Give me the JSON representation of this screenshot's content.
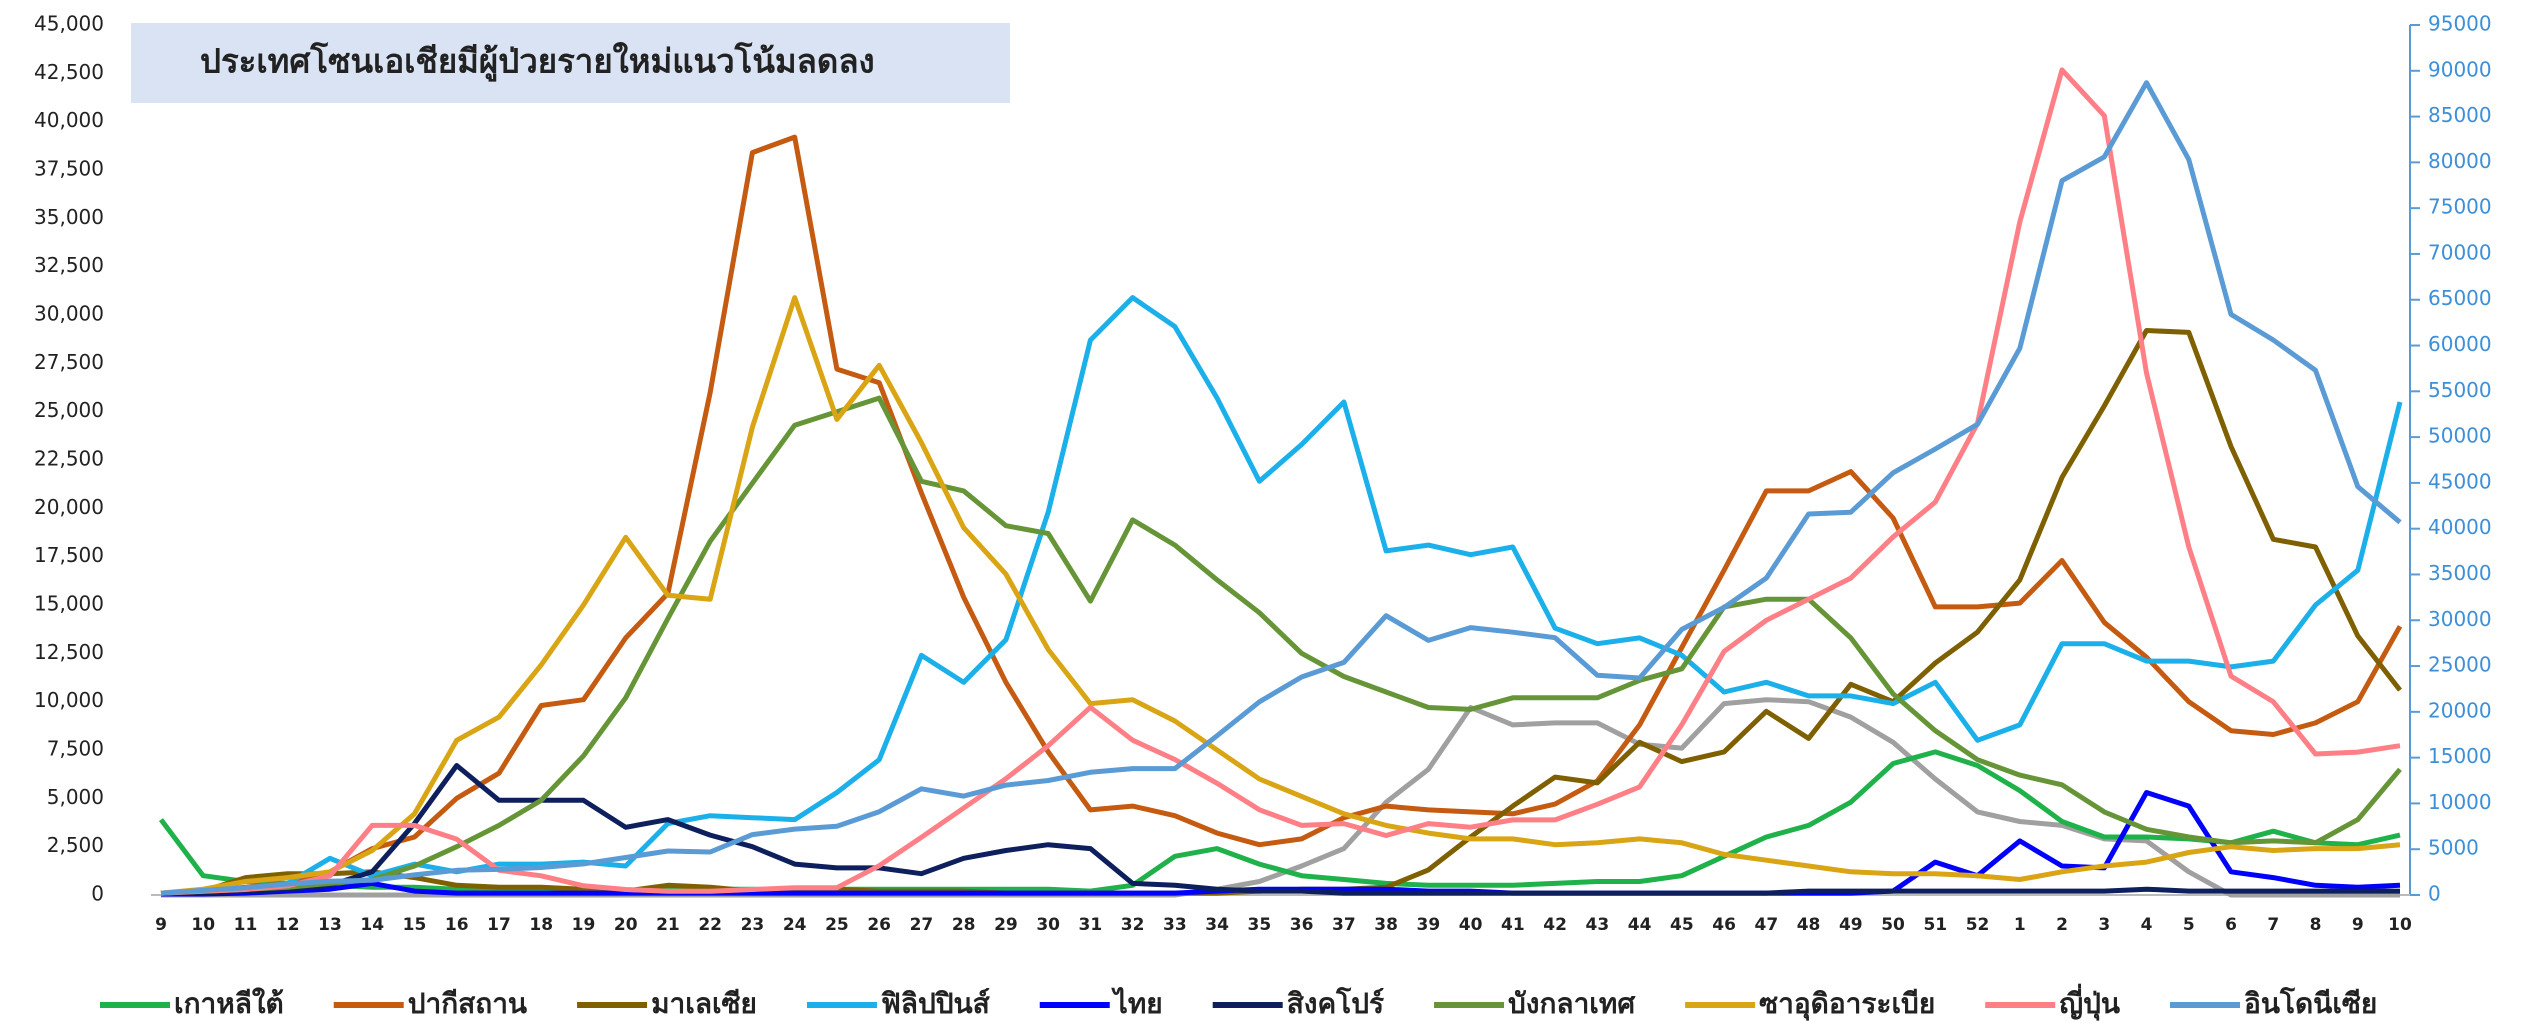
{
  "chart_data": {
    "type": "line",
    "title": "ประเทศโซนเอเชียมีผู้ป่วยรายใหม่แนวโน้มลดลง",
    "categories": [
      "9",
      "10",
      "11",
      "12",
      "13",
      "14",
      "15",
      "16",
      "17",
      "18",
      "19",
      "20",
      "21",
      "22",
      "23",
      "24",
      "25",
      "26",
      "27",
      "28",
      "29",
      "30",
      "31",
      "32",
      "33",
      "34",
      "35",
      "36",
      "37",
      "38",
      "39",
      "40",
      "41",
      "42",
      "43",
      "44",
      "45",
      "46",
      "47",
      "48",
      "49",
      "50",
      "51",
      "52",
      "1",
      "2",
      "3",
      "4",
      "5",
      "6",
      "7",
      "8",
      "9",
      "10"
    ],
    "ylim": [
      0,
      45000
    ],
    "yticks": [
      0,
      {
        "value": 2500,
        "label": "2,500"
      },
      {
        "value": 5000,
        "label": "5,000"
      },
      {
        "value": 7500,
        "label": "7,500"
      },
      {
        "value": 10000,
        "label": "10,000"
      },
      {
        "value": 12500,
        "label": "12,500"
      },
      {
        "value": 15000,
        "label": "15,000"
      },
      {
        "value": 17500,
        "label": "17,500"
      },
      {
        "value": 20000,
        "label": "20,000"
      },
      {
        "value": 22500,
        "label": "22,500"
      },
      {
        "value": 25000,
        "label": "25,000"
      },
      {
        "value": 27500,
        "label": "27,500"
      },
      {
        "value": 30000,
        "label": "30,000"
      },
      {
        "value": 32500,
        "label": "32,500"
      },
      {
        "value": 35000,
        "label": "35,000"
      },
      {
        "value": 37500,
        "label": "37,500"
      },
      {
        "value": 40000,
        "label": "40,000"
      },
      {
        "value": 42500,
        "label": "42,500"
      },
      {
        "value": 45000,
        "label": "45,000"
      }
    ],
    "y2lim": [
      0,
      95000
    ],
    "y2ticks": [
      0,
      5000,
      10000,
      15000,
      20000,
      25000,
      30000,
      35000,
      40000,
      45000,
      50000,
      55000,
      60000,
      65000,
      70000,
      75000,
      80000,
      85000,
      90000,
      95000
    ],
    "grid": false,
    "legend": "bottom",
    "series": [
      {
        "name": "เกาหลีใต้",
        "color": "#1fb24a",
        "values": [
          3900,
          1000,
          700,
          600,
          500,
          400,
          400,
          300,
          300,
          200,
          200,
          200,
          300,
          300,
          300,
          200,
          300,
          300,
          300,
          300,
          300,
          300,
          200,
          500,
          2000,
          2400,
          1600,
          1000,
          800,
          600,
          500,
          500,
          500,
          600,
          700,
          700,
          1000,
          2000,
          3000,
          3600,
          4800,
          6800,
          7400,
          6700,
          5400,
          3800,
          3000,
          3000,
          2900,
          2700,
          3300,
          2700,
          2600,
          3100
        ]
      },
      {
        "name": "ปากีสถาน",
        "color": "#c55a11",
        "values": [
          100,
          200,
          400,
          600,
          1200,
          2400,
          3000,
          5000,
          6300,
          9800,
          10100,
          13300,
          15600,
          26000,
          38400,
          39200,
          27200,
          26500,
          20800,
          15400,
          11000,
          7400,
          4400,
          4600,
          4100,
          3200,
          2600,
          2900,
          4000,
          4600,
          4400,
          4300,
          4200,
          4700,
          5900,
          8800,
          12800,
          16800,
          20900,
          20900,
          21900,
          19500,
          14900,
          14900,
          15100,
          17300,
          14100,
          12300,
          10000,
          8500,
          8300,
          8900,
          10000,
          13900
        ]
      },
      {
        "name": "มาเลเซีย",
        "color": "#7f6000",
        "values": [
          100,
          200,
          900,
          1100,
          1100,
          1200,
          900,
          500,
          400,
          400,
          300,
          200,
          500,
          400,
          200,
          300,
          300,
          200,
          200,
          200,
          100,
          100,
          100,
          100,
          100,
          100,
          200,
          300,
          300,
          400,
          1300,
          3000,
          4600,
          6100,
          5800,
          7900,
          6900,
          7400,
          9500,
          8100,
          10900,
          10000,
          12000,
          13600,
          16300,
          21600,
          25300,
          29200,
          29100,
          23200,
          18400,
          18000,
          13400,
          10600
        ]
      },
      {
        "name": "ฟิลิปปินส์",
        "color": "#1cb0ea",
        "values": [
          100,
          200,
          300,
          600,
          1900,
          1000,
          1600,
          1200,
          1600,
          1600,
          1700,
          1500,
          3700,
          4100,
          4000,
          3900,
          5300,
          7000,
          12400,
          11000,
          13200,
          19800,
          28700,
          30900,
          29400,
          25700,
          21400,
          23300,
          25500,
          17800,
          18100,
          17600,
          18000,
          13800,
          13000,
          13300,
          12400,
          10500,
          11000,
          10300,
          10300,
          9900,
          11000,
          8000,
          8800,
          13000,
          13000,
          12100,
          12100,
          11800,
          12100,
          15000,
          16800,
          25500
        ]
      },
      {
        "name": "ไทย",
        "color": "#0000ff",
        "values": [
          50,
          50,
          100,
          200,
          300,
          600,
          200,
          100,
          100,
          100,
          100,
          100,
          100,
          100,
          100,
          100,
          100,
          100,
          100,
          100,
          100,
          100,
          100,
          100,
          100,
          200,
          300,
          300,
          300,
          300,
          200,
          200,
          100,
          100,
          100,
          100,
          100,
          100,
          100,
          100,
          100,
          200,
          1700,
          1000,
          2800,
          1500,
          1400,
          5300,
          4600,
          1200,
          900,
          500,
          400,
          500
        ]
      },
      {
        "name": "สิงคโปร์",
        "color": "#0d1f5c",
        "values": [
          100,
          100,
          200,
          300,
          500,
          1200,
          3700,
          6700,
          4900,
          4900,
          4900,
          3500,
          3900,
          3100,
          2500,
          1600,
          1400,
          1400,
          1100,
          1900,
          2300,
          2600,
          2400,
          600,
          500,
          300,
          200,
          200,
          100,
          100,
          100,
          100,
          100,
          100,
          100,
          100,
          100,
          100,
          100,
          200,
          200,
          200,
          200,
          200,
          200,
          200,
          200,
          300,
          200,
          200,
          200,
          200,
          200,
          200
        ]
      },
      {
        "name": "บังกลาเทศ",
        "color": "#669537",
        "values": [
          100,
          200,
          300,
          400,
          600,
          800,
          1500,
          2500,
          3600,
          4900,
          7200,
          10200,
          14300,
          18300,
          21300,
          24300,
          25000,
          25700,
          21400,
          20900,
          19100,
          18700,
          15200,
          19400,
          18100,
          16300,
          14600,
          12500,
          11300,
          10500,
          9700,
          9600,
          10200,
          10200,
          10200,
          11100,
          11700,
          14900,
          15300,
          15300,
          13300,
          10400,
          8500,
          7000,
          6200,
          5700,
          4300,
          3400,
          3000,
          2700,
          2800,
          2700,
          3900,
          6500
        ]
      },
      {
        "name": "ซาอุดิอาระเบีย",
        "color": "#d9a514",
        "values": [
          100,
          300,
          700,
          900,
          1200,
          2300,
          4200,
          8000,
          9200,
          11900,
          15000,
          18500,
          15500,
          15300,
          24200,
          30900,
          24600,
          27400,
          23400,
          19000,
          16600,
          12700,
          9900,
          10100,
          9000,
          7500,
          6000,
          5100,
          4200,
          3600,
          3200,
          2900,
          2900,
          2600,
          2700,
          2900,
          2700,
          2100,
          1800,
          1500,
          1200,
          1100,
          1100,
          1000,
          800,
          1200,
          1500,
          1700,
          2200,
          2500,
          2300,
          2400,
          2400,
          2600
        ]
      },
      {
        "name": "ญี่ปุ่น",
        "color": "#ff7f86",
        "axis": "y2",
        "values": [
          200,
          400,
          600,
          1000,
          2100,
          7600,
          7600,
          6100,
          2700,
          2100,
          1000,
          600,
          400,
          400,
          600,
          800,
          800,
          3200,
          6300,
          9500,
          12700,
          16300,
          20500,
          16900,
          14800,
          12200,
          9300,
          7600,
          7800,
          6500,
          7800,
          7400,
          8200,
          8200,
          9900,
          11800,
          18600,
          26600,
          30000,
          32300,
          34600,
          39100,
          42900,
          51500,
          73500,
          90100,
          85100,
          57000,
          38000,
          23900,
          21100,
          15400,
          15600,
          16300
        ]
      },
      {
        "name": "อินโดนีเซีย",
        "color": "#5b9bd5",
        "axis": "y2",
        "values": [
          200,
          500,
          800,
          1200,
          1500,
          1600,
          2200,
          2700,
          2800,
          3000,
          3400,
          4100,
          4800,
          4700,
          6600,
          7200,
          7500,
          9100,
          11600,
          10800,
          12000,
          12500,
          13400,
          13800,
          13800,
          17400,
          21100,
          23800,
          25400,
          30500,
          27800,
          29200,
          28700,
          28100,
          24000,
          23700,
          29000,
          31400,
          34600,
          41600,
          41800,
          46100,
          48700,
          51400,
          59700,
          78000,
          80600,
          88700,
          80300,
          63400,
          60600,
          57300,
          44600,
          40700
        ]
      },
      {
        "color": "#a0a0a0",
        "values": [
          0,
          0,
          0,
          0,
          0,
          0,
          0,
          0,
          0,
          0,
          0,
          0,
          0,
          0,
          0,
          0,
          0,
          0,
          0,
          0,
          0,
          0,
          0,
          0,
          0,
          300,
          700,
          1500,
          2400,
          4800,
          6500,
          9700,
          8800,
          8900,
          8900,
          7800,
          7600,
          9900,
          10100,
          10000,
          9200,
          7900,
          6000,
          4300,
          3800,
          3600,
          2900,
          2800,
          1200,
          0,
          0,
          0,
          0,
          0
        ]
      }
    ]
  }
}
